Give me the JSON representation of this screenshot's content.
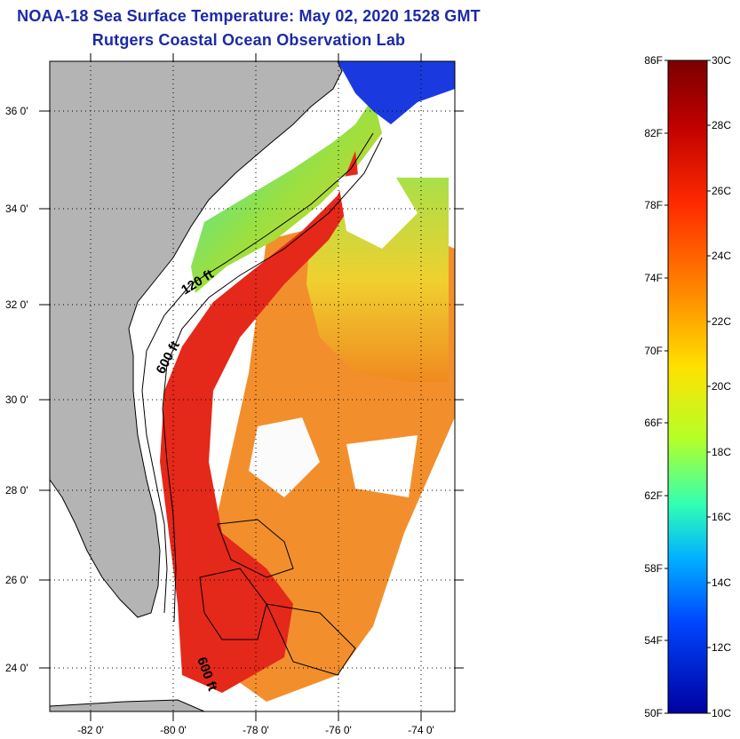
{
  "title": {
    "line1": "NOAA-18 Sea Surface Temperature:  May 02, 2020 1528 GMT",
    "line2": "Rutgers Coastal Ocean Observation Lab"
  },
  "map": {
    "lat_ticks": [
      "36 0'",
      "34 0'",
      "32 0'",
      "30 0'",
      "28 0'",
      "26 0'",
      "24 0'"
    ],
    "lon_ticks": [
      "-82 0'",
      "-80 0'",
      "-78 0'",
      "-76 0'",
      "-74 0'"
    ],
    "contour_labels": [
      "120 ft",
      "600 ft",
      "600 ft"
    ],
    "colors": {
      "land": "#b4b4b4",
      "cloud": "#ffffff",
      "gulf_stream": "#e01e10",
      "shelf_warm": "#f07a18",
      "shelf_cool": "#9be040",
      "cold_north": "#1030e0"
    }
  },
  "colorbar": {
    "fahrenheit": [
      "86F",
      "82F",
      "78F",
      "74F",
      "70F",
      "66F",
      "62F",
      "58F",
      "54F",
      "50F"
    ],
    "celsius": [
      "30C",
      "28C",
      "26C",
      "24C",
      "22C",
      "20C",
      "18C",
      "16C",
      "14C",
      "12C",
      "10C"
    ],
    "colors": [
      "#7a0000",
      "#c00000",
      "#ff2a00",
      "#ff8c00",
      "#ffe100",
      "#b4ff28",
      "#32ffb4",
      "#00b4ff",
      "#0046ff",
      "#0000a0"
    ]
  }
}
